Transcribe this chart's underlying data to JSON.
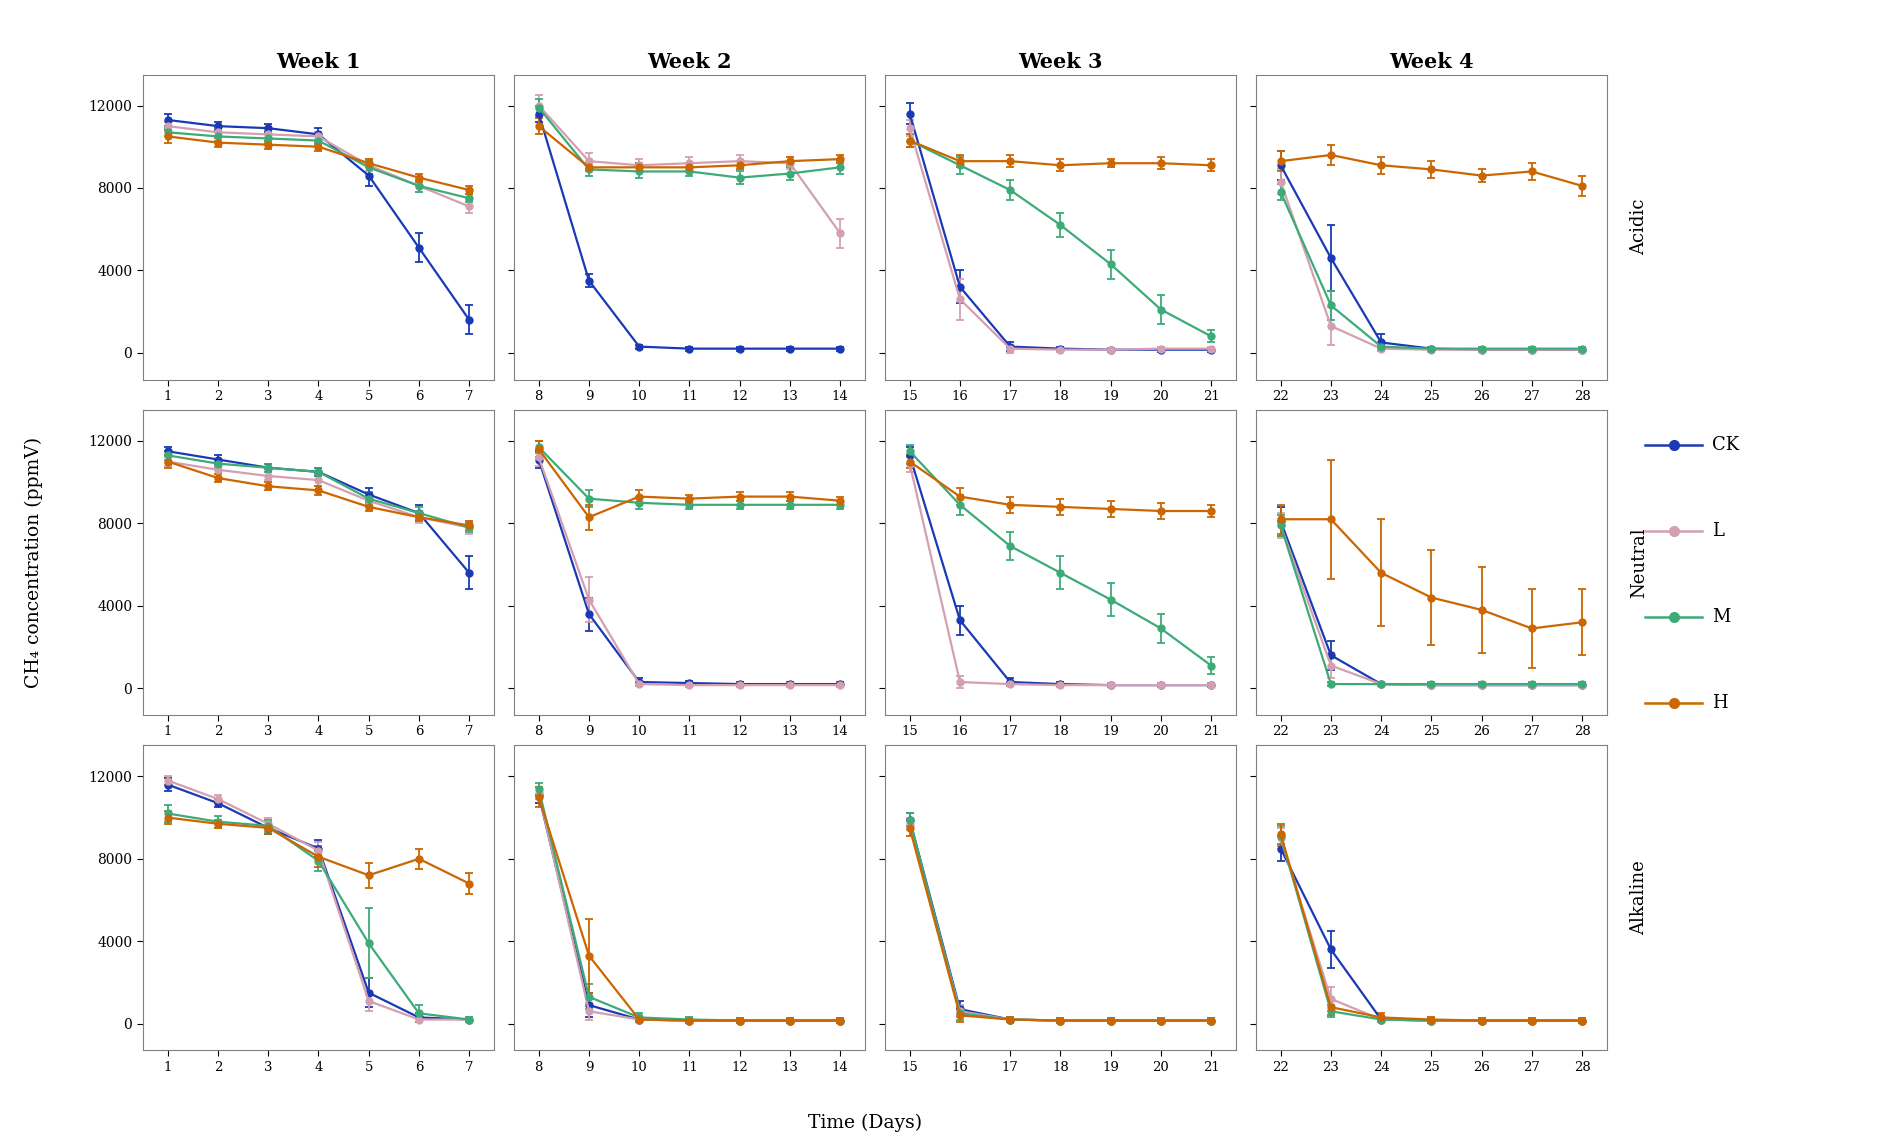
{
  "colors": {
    "CK": "#1a3ab5",
    "L": "#d4a0b0",
    "M": "#3dab78",
    "H": "#cc6600"
  },
  "legend_labels": [
    "CK",
    "L",
    "M",
    "H"
  ],
  "row_labels": [
    "Acidic",
    "Neutral",
    "Alkaline"
  ],
  "col_labels": [
    "Week 1",
    "Week 2",
    "Week 3",
    "Week 4"
  ],
  "x_ticks": [
    [
      1,
      2,
      3,
      4,
      5,
      6,
      7
    ],
    [
      8,
      9,
      10,
      11,
      12,
      13,
      14
    ],
    [
      15,
      16,
      17,
      18,
      19,
      20,
      21
    ],
    [
      22,
      23,
      24,
      25,
      26,
      27,
      28
    ]
  ],
  "ylabel": "CH₄ concentration (ppmV)",
  "xlabel": "Time (Days)",
  "ylim": [
    -1300,
    13500
  ],
  "yticks": [
    0,
    4000,
    8000,
    12000
  ],
  "data": {
    "Acidic": {
      "Week1": {
        "CK": {
          "mean": [
            11300,
            11000,
            10900,
            10600,
            8600,
            5100,
            1600
          ],
          "err": [
            300,
            200,
            200,
            300,
            500,
            700,
            700
          ]
        },
        "L": {
          "mean": [
            11000,
            10700,
            10600,
            10500,
            9100,
            8100,
            7100
          ],
          "err": [
            200,
            200,
            200,
            200,
            300,
            300,
            300
          ]
        },
        "M": {
          "mean": [
            10700,
            10500,
            10400,
            10300,
            9000,
            8100,
            7500
          ],
          "err": [
            200,
            200,
            200,
            200,
            300,
            300,
            200
          ]
        },
        "H": {
          "mean": [
            10500,
            10200,
            10100,
            10000,
            9200,
            8500,
            7900
          ],
          "err": [
            300,
            200,
            200,
            200,
            200,
            200,
            200
          ]
        }
      },
      "Week2": {
        "CK": {
          "mean": [
            11600,
            3500,
            300,
            200,
            200,
            200,
            200
          ],
          "err": [
            400,
            300,
            100,
            100,
            100,
            100,
            100
          ]
        },
        "L": {
          "mean": [
            12000,
            9300,
            9100,
            9200,
            9300,
            9200,
            5800
          ],
          "err": [
            500,
            400,
            300,
            300,
            300,
            300,
            700
          ]
        },
        "M": {
          "mean": [
            11900,
            8900,
            8800,
            8800,
            8500,
            8700,
            9000
          ],
          "err": [
            400,
            300,
            300,
            200,
            300,
            300,
            300
          ]
        },
        "H": {
          "mean": [
            11000,
            9000,
            9000,
            9000,
            9100,
            9300,
            9400
          ],
          "err": [
            400,
            200,
            200,
            200,
            200,
            200,
            200
          ]
        }
      },
      "Week3": {
        "CK": {
          "mean": [
            11600,
            3200,
            300,
            200,
            150,
            150,
            150
          ],
          "err": [
            500,
            800,
            200,
            100,
            100,
            100,
            100
          ]
        },
        "L": {
          "mean": [
            10900,
            2600,
            200,
            150,
            150,
            200,
            200
          ],
          "err": [
            400,
            1000,
            200,
            100,
            100,
            100,
            100
          ]
        },
        "M": {
          "mean": [
            10300,
            9100,
            7900,
            6200,
            4300,
            2100,
            800
          ],
          "err": [
            300,
            400,
            500,
            600,
            700,
            700,
            300
          ]
        },
        "H": {
          "mean": [
            10300,
            9300,
            9300,
            9100,
            9200,
            9200,
            9100
          ],
          "err": [
            300,
            300,
            300,
            300,
            200,
            300,
            300
          ]
        }
      },
      "Week4": {
        "CK": {
          "mean": [
            9100,
            4600,
            500,
            200,
            150,
            150,
            150
          ],
          "err": [
            700,
            1600,
            400,
            100,
            100,
            100,
            100
          ]
        },
        "L": {
          "mean": [
            8300,
            1300,
            200,
            150,
            150,
            150,
            150
          ],
          "err": [
            600,
            900,
            100,
            100,
            100,
            100,
            100
          ]
        },
        "M": {
          "mean": [
            7800,
            2300,
            300,
            200,
            200,
            200,
            200
          ],
          "err": [
            400,
            700,
            100,
            100,
            100,
            100,
            100
          ]
        },
        "H": {
          "mean": [
            9300,
            9600,
            9100,
            8900,
            8600,
            8800,
            8100
          ],
          "err": [
            500,
            500,
            400,
            400,
            300,
            400,
            500
          ]
        }
      }
    },
    "Neutral": {
      "Week1": {
        "CK": {
          "mean": [
            11500,
            11100,
            10700,
            10500,
            9400,
            8500,
            5600
          ],
          "err": [
            200,
            200,
            200,
            200,
            300,
            400,
            800
          ]
        },
        "L": {
          "mean": [
            11000,
            10600,
            10300,
            10100,
            9100,
            8300,
            7800
          ],
          "err": [
            200,
            200,
            200,
            300,
            300,
            300,
            300
          ]
        },
        "M": {
          "mean": [
            11300,
            10900,
            10700,
            10500,
            9200,
            8500,
            7800
          ],
          "err": [
            200,
            200,
            200,
            200,
            300,
            300,
            200
          ]
        },
        "H": {
          "mean": [
            11000,
            10200,
            9800,
            9600,
            8800,
            8300,
            7900
          ],
          "err": [
            300,
            200,
            200,
            200,
            200,
            200,
            200
          ]
        }
      },
      "Week2": {
        "CK": {
          "mean": [
            11100,
            3600,
            300,
            250,
            200,
            200,
            200
          ],
          "err": [
            400,
            800,
            200,
            100,
            100,
            100,
            100
          ]
        },
        "L": {
          "mean": [
            11200,
            4300,
            200,
            150,
            150,
            150,
            150
          ],
          "err": [
            400,
            1100,
            100,
            100,
            100,
            100,
            100
          ]
        },
        "M": {
          "mean": [
            11700,
            9200,
            9000,
            8900,
            8900,
            8900,
            8900
          ],
          "err": [
            300,
            400,
            300,
            200,
            200,
            200,
            200
          ]
        },
        "H": {
          "mean": [
            11600,
            8300,
            9300,
            9200,
            9300,
            9300,
            9100
          ],
          "err": [
            400,
            600,
            300,
            200,
            200,
            200,
            200
          ]
        }
      },
      "Week3": {
        "CK": {
          "mean": [
            11300,
            3300,
            300,
            200,
            150,
            150,
            150
          ],
          "err": [
            400,
            700,
            200,
            100,
            100,
            100,
            100
          ]
        },
        "L": {
          "mean": [
            10900,
            300,
            200,
            150,
            150,
            150,
            150
          ],
          "err": [
            400,
            300,
            100,
            100,
            100,
            100,
            100
          ]
        },
        "M": {
          "mean": [
            11500,
            8900,
            6900,
            5600,
            4300,
            2900,
            1100
          ],
          "err": [
            300,
            500,
            700,
            800,
            800,
            700,
            400
          ]
        },
        "H": {
          "mean": [
            11000,
            9300,
            8900,
            8800,
            8700,
            8600,
            8600
          ],
          "err": [
            300,
            400,
            400,
            400,
            400,
            400,
            300
          ]
        }
      },
      "Week4": {
        "CK": {
          "mean": [
            8100,
            1600,
            200,
            150,
            150,
            150,
            150
          ],
          "err": [
            700,
            700,
            100,
            100,
            100,
            100,
            100
          ]
        },
        "L": {
          "mean": [
            7900,
            1100,
            200,
            150,
            150,
            150,
            150
          ],
          "err": [
            600,
            600,
            100,
            100,
            100,
            100,
            100
          ]
        },
        "M": {
          "mean": [
            7900,
            200,
            200,
            200,
            200,
            200,
            200
          ],
          "err": [
            500,
            100,
            100,
            100,
            100,
            100,
            100
          ]
        },
        "H": {
          "mean": [
            8200,
            8200,
            5600,
            4400,
            3800,
            2900,
            3200
          ],
          "err": [
            700,
            2900,
            2600,
            2300,
            2100,
            1900,
            1600
          ]
        }
      }
    },
    "Alkaline": {
      "Week1": {
        "CK": {
          "mean": [
            11600,
            10700,
            9500,
            8500,
            1500,
            300,
            200
          ],
          "err": [
            300,
            200,
            300,
            400,
            700,
            200,
            100
          ]
        },
        "L": {
          "mean": [
            11800,
            10900,
            9700,
            8400,
            1100,
            200,
            200
          ],
          "err": [
            200,
            200,
            300,
            400,
            500,
            100,
            100
          ]
        },
        "M": {
          "mean": [
            10200,
            9800,
            9600,
            7900,
            3900,
            500,
            200
          ],
          "err": [
            400,
            300,
            300,
            500,
            1700,
            400,
            100
          ]
        },
        "H": {
          "mean": [
            10000,
            9700,
            9500,
            8100,
            7200,
            8000,
            6800
          ],
          "err": [
            300,
            200,
            300,
            500,
            600,
            500,
            500
          ]
        }
      },
      "Week2": {
        "CK": {
          "mean": [
            11100,
            900,
            200,
            150,
            150,
            150,
            150
          ],
          "err": [
            400,
            600,
            100,
            100,
            100,
            100,
            100
          ]
        },
        "L": {
          "mean": [
            11200,
            600,
            200,
            150,
            150,
            150,
            150
          ],
          "err": [
            300,
            400,
            100,
            100,
            100,
            100,
            100
          ]
        },
        "M": {
          "mean": [
            11400,
            1300,
            300,
            200,
            150,
            150,
            150
          ],
          "err": [
            300,
            600,
            200,
            100,
            100,
            100,
            100
          ]
        },
        "H": {
          "mean": [
            11000,
            3300,
            200,
            150,
            150,
            150,
            150
          ],
          "err": [
            500,
            1800,
            100,
            100,
            100,
            100,
            100
          ]
        }
      },
      "Week3": {
        "CK": {
          "mean": [
            9900,
            700,
            200,
            150,
            150,
            150,
            150
          ],
          "err": [
            300,
            400,
            100,
            100,
            100,
            100,
            100
          ]
        },
        "L": {
          "mean": [
            9700,
            600,
            200,
            150,
            150,
            150,
            150
          ],
          "err": [
            300,
            300,
            100,
            100,
            100,
            100,
            100
          ]
        },
        "M": {
          "mean": [
            9900,
            500,
            200,
            150,
            150,
            150,
            150
          ],
          "err": [
            300,
            300,
            100,
            100,
            100,
            100,
            100
          ]
        },
        "H": {
          "mean": [
            9500,
            400,
            200,
            150,
            150,
            150,
            150
          ],
          "err": [
            400,
            300,
            100,
            100,
            100,
            100,
            100
          ]
        }
      },
      "Week4": {
        "CK": {
          "mean": [
            8500,
            3600,
            200,
            150,
            150,
            150,
            150
          ],
          "err": [
            600,
            900,
            100,
            100,
            100,
            100,
            100
          ]
        },
        "L": {
          "mean": [
            9000,
            1200,
            200,
            150,
            150,
            150,
            150
          ],
          "err": [
            500,
            600,
            100,
            100,
            100,
            100,
            100
          ]
        },
        "M": {
          "mean": [
            9100,
            600,
            200,
            150,
            150,
            150,
            150
          ],
          "err": [
            500,
            300,
            100,
            100,
            100,
            100,
            100
          ]
        },
        "H": {
          "mean": [
            9200,
            800,
            300,
            200,
            150,
            150,
            150
          ],
          "err": [
            500,
            400,
            200,
            100,
            100,
            100,
            100
          ]
        }
      }
    }
  }
}
